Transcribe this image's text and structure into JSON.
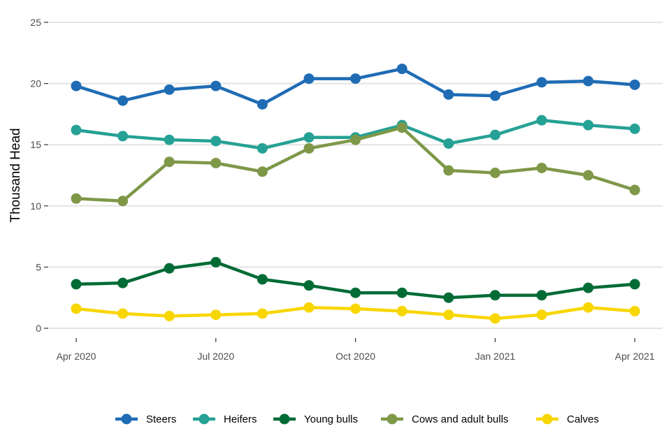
{
  "chart_data": {
    "type": "line",
    "title": "",
    "xlabel": "",
    "ylabel": "Thousand Head",
    "ylim": [
      0,
      25
    ],
    "yticks": [
      0,
      5,
      10,
      15,
      20,
      25
    ],
    "x_months": [
      "2020-04",
      "2020-05",
      "2020-06",
      "2020-07",
      "2020-08",
      "2020-09",
      "2020-10",
      "2020-11",
      "2020-12",
      "2021-01",
      "2021-02",
      "2021-03",
      "2021-04"
    ],
    "xticks": [
      {
        "index": 0,
        "label": "Apr 2020"
      },
      {
        "index": 3,
        "label": "Jul 2020"
      },
      {
        "index": 6,
        "label": "Oct 2020"
      },
      {
        "index": 9,
        "label": "Jan 2021"
      },
      {
        "index": 12,
        "label": "Apr 2021"
      }
    ],
    "grid": true,
    "legend_position": "bottom",
    "series": [
      {
        "name": "Steers",
        "color": "#1f6cb5",
        "values": [
          19.8,
          18.6,
          19.5,
          19.8,
          18.3,
          20.4,
          20.4,
          21.2,
          19.1,
          19.0,
          20.1,
          20.2,
          19.9
        ]
      },
      {
        "name": "Heifers",
        "color": "#26a195",
        "values": [
          16.2,
          15.7,
          15.4,
          15.3,
          14.7,
          15.6,
          15.6,
          16.6,
          15.1,
          15.8,
          17.0,
          16.6,
          16.3
        ]
      },
      {
        "name": "Young bulls",
        "color": "#006b35",
        "values": [
          3.6,
          3.7,
          4.9,
          5.4,
          4.0,
          3.5,
          2.9,
          2.9,
          2.5,
          2.7,
          2.7,
          3.3,
          3.6
        ]
      },
      {
        "name": "Cows and adult bulls",
        "color": "#7e9848",
        "values": [
          10.6,
          10.4,
          13.6,
          13.5,
          12.8,
          14.7,
          15.4,
          16.4,
          12.9,
          12.7,
          13.1,
          12.5,
          11.3
        ]
      },
      {
        "name": "Calves",
        "color": "#f8d600",
        "values": [
          1.6,
          1.2,
          1.0,
          1.1,
          1.2,
          1.7,
          1.6,
          1.4,
          1.1,
          0.8,
          1.1,
          1.7,
          1.4
        ]
      }
    ]
  }
}
